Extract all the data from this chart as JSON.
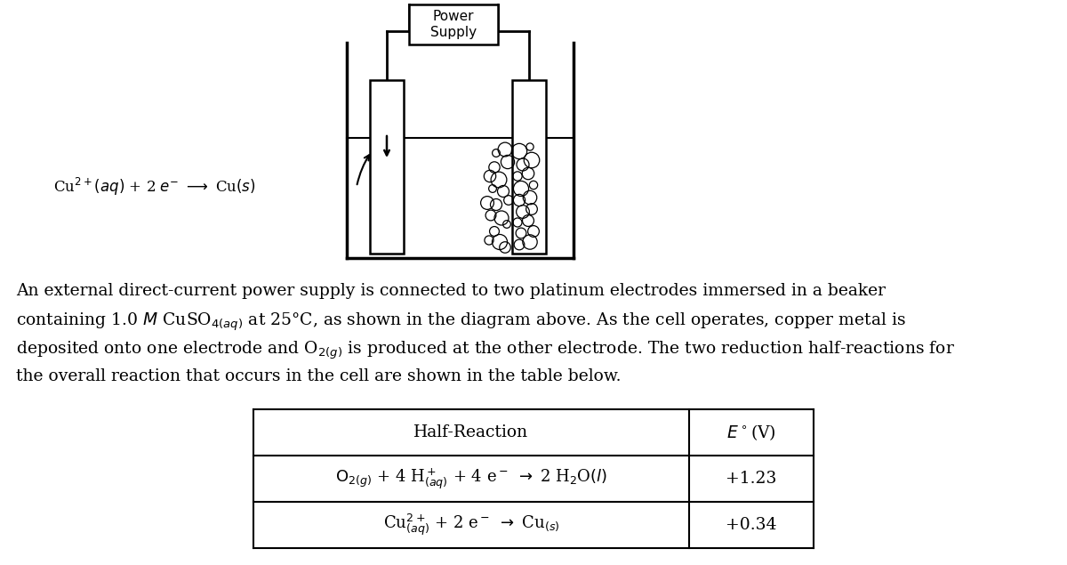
{
  "background_color": "#ffffff",
  "power_supply_label": "Power\nSupply",
  "line1": "An external direct-current power supply is connected to two platinum electrodes immersed in a beaker",
  "line2": "containing 1.0 $M$ CuSO$_{4(aq)}$ at 25°C, as shown in the diagram above. As the cell operates, copper metal is",
  "line3": "deposited onto one electrode and O$_{2(g)}$ is produced at the other electrode. The two reduction half-reactions for",
  "line4": "the overall reaction that occurs in the cell are shown in the table below.",
  "table_header_left": "Half-Reaction",
  "table_header_right": "$E^\\circ$(V)",
  "row1_left": "$\\mathrm{O}_{2(g)}$ + 4 H$^+_{(aq)}$ + 4 e$^-$ $\\rightarrow$ 2 H$_2$O$(l)$",
  "row1_right": "+1.23",
  "row2_left": "Cu$^{2+}_{(aq)}$ + 2 e$^-$ $\\rightarrow$ Cu$_{(s)}$",
  "row2_right": "+0.34",
  "eq_label": "Cu$^{2+}$$(aq)$ + 2 $e^-$ $\\longrightarrow$ Cu$(s)$"
}
